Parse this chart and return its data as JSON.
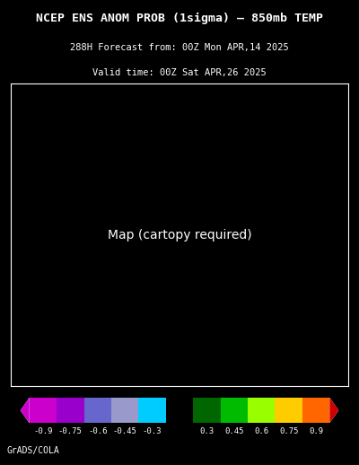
{
  "title_line1": "NCEP ENS ANOM PROB (1sigma) – 850mb TEMP",
  "title_line2": "288H Forecast from: 00Z Mon APR,14 2025",
  "title_line3": "Valid time: 00Z Sat APR,26 2025",
  "background_color": "#000000",
  "map_bg_color": "#000000",
  "border_color": "#ffffff",
  "colorbar_colors": [
    "#cc00cc",
    "#9900cc",
    "#6600cc",
    "#9999cc",
    "#66ccff",
    "#00cccc",
    "#000000",
    "#006600",
    "#00cc00",
    "#ccff00",
    "#ffcc00",
    "#ff6600",
    "#cc0000"
  ],
  "colorbar_labels": [
    "-0.9",
    "-0.75",
    "-0.6",
    "-0.45",
    "-0.3",
    "0.3",
    "0.45",
    "0.6",
    "0.75",
    "0.9"
  ],
  "colorbar_values": [
    -1.05,
    -0.9,
    -0.75,
    -0.6,
    -0.45,
    -0.3,
    0.0,
    0.3,
    0.45,
    0.6,
    0.75,
    0.9,
    1.05
  ],
  "grid_color": "#888888",
  "grid_linestyle": "dotted",
  "credit_text": "GrADS/COLA",
  "credit_color": "#ffffff",
  "title_color": "#ffffff"
}
